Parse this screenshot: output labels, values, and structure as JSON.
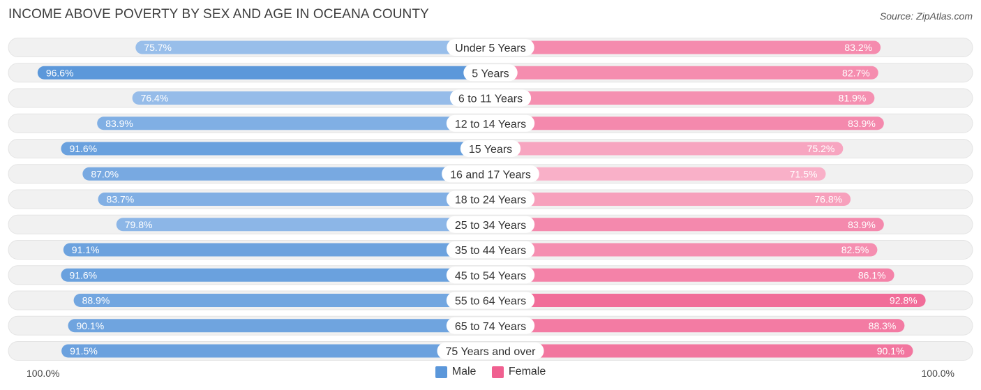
{
  "title": "INCOME ABOVE POVERTY BY SEX AND AGE IN OCEANA COUNTY",
  "source": "Source: ZipAtlas.com",
  "axis": {
    "left_label": "100.0%",
    "right_label": "100.0%"
  },
  "legend": {
    "male_label": "Male",
    "female_label": "Female"
  },
  "colors": {
    "male_light": "#a8c8ee",
    "male_dark": "#5b97da",
    "female_light": "#f9b5cb",
    "female_dark": "#f06090",
    "track": "#f1f1f1"
  },
  "chart_data": {
    "type": "bar",
    "orientation": "horizontal-diverging",
    "title": "INCOME ABOVE POVERTY BY SEX AND AGE IN OCEANA COUNTY",
    "xlim": [
      0,
      100
    ],
    "categories": [
      "Under 5 Years",
      "5 Years",
      "6 to 11 Years",
      "12 to 14 Years",
      "15 Years",
      "16 and 17 Years",
      "18 to 24 Years",
      "25 to 34 Years",
      "35 to 44 Years",
      "45 to 54 Years",
      "55 to 64 Years",
      "65 to 74 Years",
      "75 Years and over"
    ],
    "series": [
      {
        "name": "Male",
        "side": "left",
        "values": [
          75.7,
          96.6,
          76.4,
          83.9,
          91.6,
          87.0,
          83.7,
          79.8,
          91.1,
          91.6,
          88.9,
          90.1,
          91.5
        ],
        "labels": [
          "75.7%",
          "96.6%",
          "76.4%",
          "83.9%",
          "91.6%",
          "87.0%",
          "83.7%",
          "79.8%",
          "91.1%",
          "91.6%",
          "88.9%",
          "90.1%",
          "91.5%"
        ]
      },
      {
        "name": "Female",
        "side": "right",
        "values": [
          83.2,
          82.7,
          81.9,
          83.9,
          75.2,
          71.5,
          76.8,
          83.9,
          82.5,
          86.1,
          92.8,
          88.3,
          90.1
        ],
        "labels": [
          "83.2%",
          "82.7%",
          "81.9%",
          "83.9%",
          "75.2%",
          "71.5%",
          "76.8%",
          "83.9%",
          "82.5%",
          "86.1%",
          "92.8%",
          "88.3%",
          "90.1%"
        ]
      }
    ]
  }
}
